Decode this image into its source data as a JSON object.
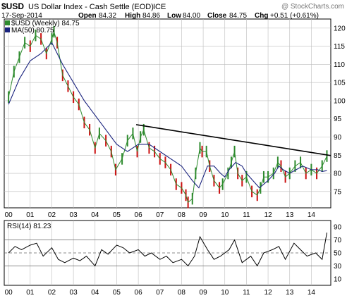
{
  "header": {
    "symbol": "$USD",
    "name": "US Dollar Index - Cash Settle (EOD)",
    "exchange": "ICE",
    "watermark": "@ StockCharts.com",
    "date": "17-Sep-2014",
    "open_label": "Open",
    "open": "84.32",
    "high_label": "High",
    "high": "84.86",
    "low_label": "Low",
    "low": "84.00",
    "close_label": "Close",
    "close": "84.75",
    "chg_label": "Chg",
    "chg": "+0.51 (+0.61%)"
  },
  "colors": {
    "up": "#2e8b2e",
    "down": "#cc1010",
    "ma": "#1a237e",
    "trend": "#000000",
    "grid": "#bdbdbd",
    "rsi": "#000000"
  },
  "chart_data": [
    {
      "type": "line",
      "title": "$USD US Dollar Index - Cash Settle (EOD) ICE",
      "legend": [
        {
          "label": "$USD (Weekly) 84.75",
          "color": "#2e8b2e"
        },
        {
          "label": "MA(50) 80.75",
          "color": "#1a237e"
        }
      ],
      "legend_position": "top-left",
      "grid": true,
      "x_ticks": [
        "00",
        "01",
        "02",
        "03",
        "04",
        "05",
        "06",
        "07",
        "08",
        "09",
        "10",
        "11",
        "12",
        "13",
        "14"
      ],
      "x_range": [
        1999.8,
        2014.9
      ],
      "y_ticks": [
        75,
        80,
        85,
        90,
        95,
        100,
        105,
        110,
        115,
        120
      ],
      "y_range": [
        70.5,
        122.5
      ],
      "x_unit": "year",
      "series": [
        {
          "name": "$USD (Weekly)",
          "style": "bars",
          "x": [
            2000.0,
            2000.25,
            2000.5,
            2000.75,
            2001.0,
            2001.25,
            2001.5,
            2001.75,
            2002.0,
            2002.1,
            2002.25,
            2002.5,
            2002.75,
            2003.0,
            2003.25,
            2003.5,
            2003.75,
            2004.0,
            2004.2,
            2004.5,
            2004.75,
            2004.95,
            2005.25,
            2005.5,
            2005.75,
            2005.95,
            2006.1,
            2006.25,
            2006.5,
            2006.75,
            2007.0,
            2007.25,
            2007.5,
            2007.75,
            2008.0,
            2008.2,
            2008.3,
            2008.5,
            2008.65,
            2008.85,
            2008.95,
            2009.15,
            2009.3,
            2009.5,
            2009.75,
            2009.9,
            2010.15,
            2010.3,
            2010.45,
            2010.6,
            2010.8,
            2011.0,
            2011.25,
            2011.5,
            2011.65,
            2011.8,
            2012.0,
            2012.25,
            2012.45,
            2012.6,
            2012.8,
            2013.0,
            2013.25,
            2013.5,
            2013.75,
            2014.0,
            2014.25,
            2014.5,
            2014.72
          ],
          "values": [
            101,
            108,
            112,
            116,
            115,
            118,
            117,
            113,
            117,
            119,
            116,
            107,
            104,
            101,
            99,
            94,
            92,
            87,
            91,
            89,
            86,
            81,
            84,
            89,
            91,
            86,
            90,
            92,
            87,
            86,
            84,
            83,
            81,
            77,
            76,
            74,
            72,
            73,
            80,
            87,
            86,
            86,
            82,
            78,
            76,
            77,
            80,
            83,
            86,
            80,
            78,
            79,
            75,
            74,
            76,
            79,
            79,
            80,
            83,
            82,
            79,
            80,
            82,
            83,
            80,
            81,
            80,
            82,
            84.75
          ]
        },
        {
          "name": "MA(50)",
          "style": "line",
          "x": [
            2000.0,
            2000.5,
            2001.0,
            2001.5,
            2002.0,
            2002.5,
            2003.0,
            2003.5,
            2004.0,
            2004.5,
            2005.0,
            2005.5,
            2006.0,
            2006.5,
            2007.0,
            2007.5,
            2008.0,
            2008.5,
            2008.8,
            2009.0,
            2009.2,
            2009.5,
            2009.8,
            2010.0,
            2010.2,
            2010.5,
            2010.8,
            2011.0,
            2011.3,
            2011.6,
            2012.0,
            2012.3,
            2012.5,
            2012.7,
            2013.0,
            2013.3,
            2013.6,
            2014.0,
            2014.3,
            2014.5,
            2014.72
          ],
          "values": [
            99,
            106,
            111,
            113,
            116,
            110,
            105,
            100,
            96,
            92,
            88,
            86,
            88,
            88,
            86,
            84,
            82,
            78,
            76,
            79,
            82,
            82,
            80,
            79,
            81,
            83,
            82,
            80,
            78,
            76,
            78,
            80,
            82,
            81,
            80,
            81,
            82,
            81,
            81,
            80.5,
            80.75
          ]
        },
        {
          "name": "Trendline",
          "style": "line",
          "x": [
            2005.9,
            2014.9
          ],
          "values": [
            93.4,
            84.9
          ]
        }
      ]
    },
    {
      "type": "line",
      "legend": [
        {
          "label": "RSI(14) 81.23",
          "color": "#000000"
        }
      ],
      "legend_position": "top-left",
      "grid": true,
      "x_ticks": [
        "00",
        "01",
        "02",
        "03",
        "04",
        "05",
        "06",
        "07",
        "08",
        "09",
        "10",
        "11",
        "12",
        "13",
        "14"
      ],
      "x_range": [
        1999.8,
        2014.9
      ],
      "y_ticks": [
        10,
        30,
        50,
        70,
        90
      ],
      "y_range": [
        0,
        100
      ],
      "reference_lines": [
        30,
        50,
        70
      ],
      "series": [
        {
          "name": "RSI(14)",
          "x": [
            2000.0,
            2000.3,
            2000.6,
            2001.0,
            2001.3,
            2001.6,
            2002.0,
            2002.3,
            2002.6,
            2003.0,
            2003.3,
            2003.6,
            2004.0,
            2004.3,
            2004.6,
            2005.0,
            2005.3,
            2005.6,
            2006.0,
            2006.3,
            2006.6,
            2007.0,
            2007.3,
            2007.6,
            2008.0,
            2008.3,
            2008.6,
            2008.85,
            2009.2,
            2009.5,
            2009.8,
            2010.2,
            2010.45,
            2010.8,
            2011.2,
            2011.5,
            2011.8,
            2012.2,
            2012.5,
            2012.8,
            2013.2,
            2013.5,
            2013.8,
            2014.2,
            2014.5,
            2014.72
          ],
          "values": [
            50,
            60,
            55,
            62,
            65,
            45,
            58,
            40,
            35,
            42,
            38,
            45,
            30,
            55,
            48,
            62,
            58,
            50,
            55,
            45,
            50,
            40,
            45,
            35,
            40,
            30,
            45,
            75,
            55,
            40,
            45,
            55,
            70,
            35,
            45,
            30,
            50,
            55,
            60,
            40,
            65,
            55,
            45,
            50,
            40,
            81.23
          ]
        }
      ]
    }
  ]
}
